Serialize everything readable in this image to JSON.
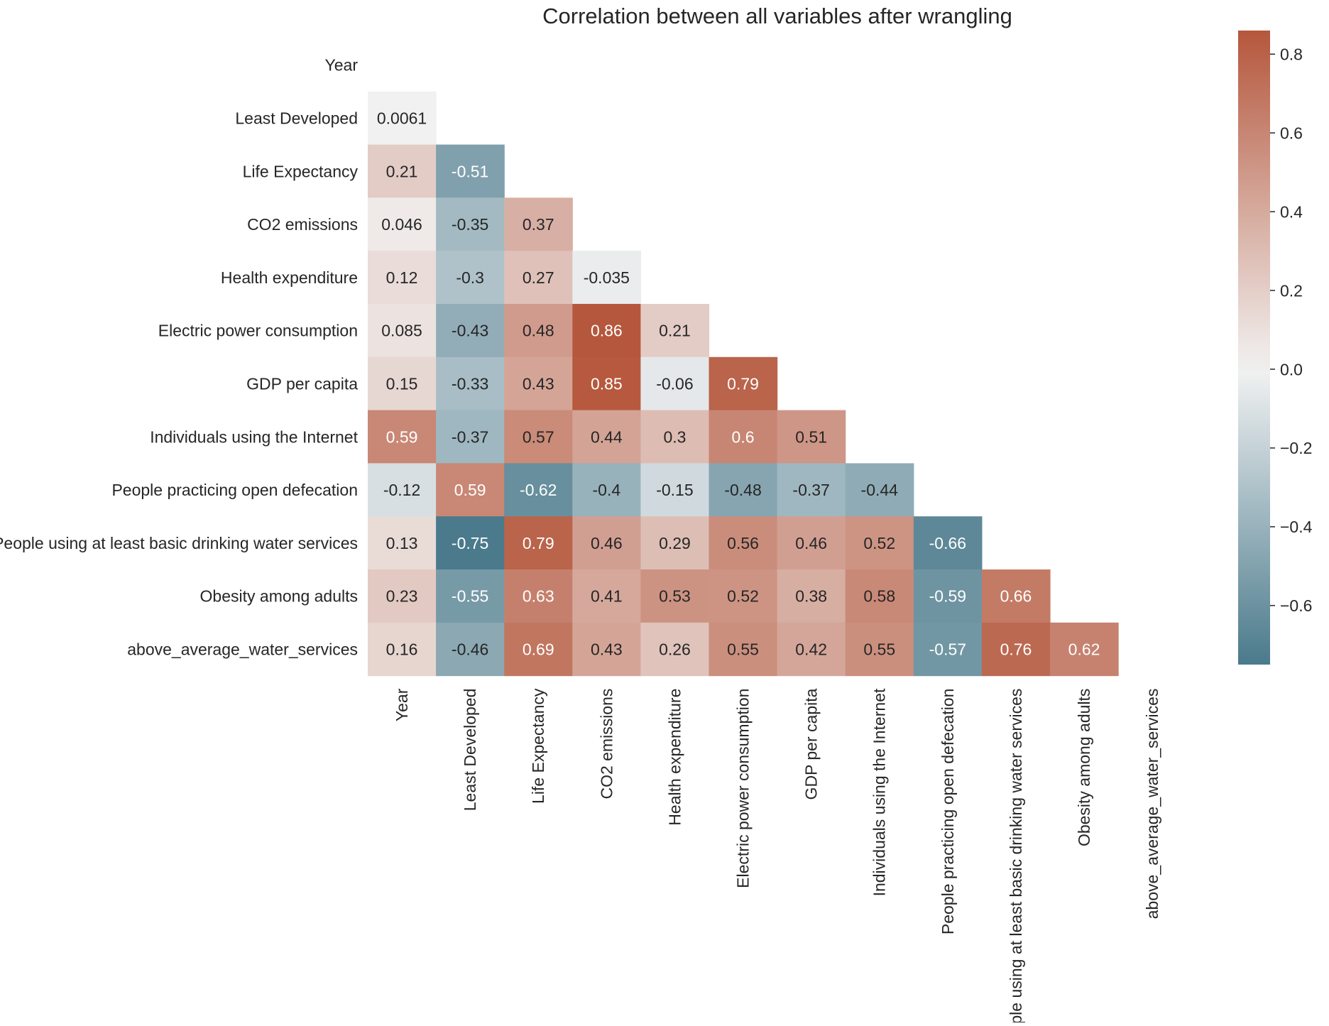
{
  "chart_data": {
    "type": "heatmap",
    "title": "Correlation between all variables after wrangling",
    "variables": [
      "Year",
      "Least Developed",
      "Life Expectancy",
      "CO2 emissions",
      "Health expenditure",
      "Electric power consumption",
      "GDP per capita",
      "Individuals using the Internet",
      "People practicing open defecation",
      "People using at least basic drinking water services",
      "Obesity among adults",
      "above_average_water_services"
    ],
    "mask": "upper triangle and diagonal (lower triangle shown)",
    "cells": [
      [
        "Least Developed",
        "Year",
        "0.0061"
      ],
      [
        "Life Expectancy",
        "Year",
        "0.21"
      ],
      [
        "Life Expectancy",
        "Least Developed",
        "-0.51"
      ],
      [
        "CO2 emissions",
        "Year",
        "0.046"
      ],
      [
        "CO2 emissions",
        "Least Developed",
        "-0.35"
      ],
      [
        "CO2 emissions",
        "Life Expectancy",
        "0.37"
      ],
      [
        "Health expenditure",
        "Year",
        "0.12"
      ],
      [
        "Health expenditure",
        "Least Developed",
        "-0.3"
      ],
      [
        "Health expenditure",
        "Life Expectancy",
        "0.27"
      ],
      [
        "Health expenditure",
        "CO2 emissions",
        "-0.035"
      ],
      [
        "Electric power consumption",
        "Year",
        "0.085"
      ],
      [
        "Electric power consumption",
        "Least Developed",
        "-0.43"
      ],
      [
        "Electric power consumption",
        "Life Expectancy",
        "0.48"
      ],
      [
        "Electric power consumption",
        "CO2 emissions",
        "0.86"
      ],
      [
        "Electric power consumption",
        "Health expenditure",
        "0.21"
      ],
      [
        "GDP per capita",
        "Year",
        "0.15"
      ],
      [
        "GDP per capita",
        "Least Developed",
        "-0.33"
      ],
      [
        "GDP per capita",
        "Life Expectancy",
        "0.43"
      ],
      [
        "GDP per capita",
        "CO2 emissions",
        "0.85"
      ],
      [
        "GDP per capita",
        "Health expenditure",
        "-0.06"
      ],
      [
        "GDP per capita",
        "Electric power consumption",
        "0.79"
      ],
      [
        "Individuals using the Internet",
        "Year",
        "0.59"
      ],
      [
        "Individuals using the Internet",
        "Least Developed",
        "-0.37"
      ],
      [
        "Individuals using the Internet",
        "Life Expectancy",
        "0.57"
      ],
      [
        "Individuals using the Internet",
        "CO2 emissions",
        "0.44"
      ],
      [
        "Individuals using the Internet",
        "Health expenditure",
        "0.3"
      ],
      [
        "Individuals using the Internet",
        "Electric power consumption",
        "0.6"
      ],
      [
        "Individuals using the Internet",
        "GDP per capita",
        "0.51"
      ],
      [
        "People practicing open defecation",
        "Year",
        "-0.12"
      ],
      [
        "People practicing open defecation",
        "Least Developed",
        "0.59"
      ],
      [
        "People practicing open defecation",
        "Life Expectancy",
        "-0.62"
      ],
      [
        "People practicing open defecation",
        "CO2 emissions",
        "-0.4"
      ],
      [
        "People practicing open defecation",
        "Health expenditure",
        "-0.15"
      ],
      [
        "People practicing open defecation",
        "Electric power consumption",
        "-0.48"
      ],
      [
        "People practicing open defecation",
        "GDP per capita",
        "-0.37"
      ],
      [
        "People practicing open defecation",
        "Individuals using the Internet",
        "-0.44"
      ],
      [
        "People using at least basic drinking water services",
        "Year",
        "0.13"
      ],
      [
        "People using at least basic drinking water services",
        "Least Developed",
        "-0.75"
      ],
      [
        "People using at least basic drinking water services",
        "Life Expectancy",
        "0.79"
      ],
      [
        "People using at least basic drinking water services",
        "CO2 emissions",
        "0.46"
      ],
      [
        "People using at least basic drinking water services",
        "Health expenditure",
        "0.29"
      ],
      [
        "People using at least basic drinking water services",
        "Electric power consumption",
        "0.56"
      ],
      [
        "People using at least basic drinking water services",
        "GDP per capita",
        "0.46"
      ],
      [
        "People using at least basic drinking water services",
        "Individuals using the Internet",
        "0.52"
      ],
      [
        "People using at least basic drinking water services",
        "People practicing open defecation",
        "-0.66"
      ],
      [
        "Obesity among adults",
        "Year",
        "0.23"
      ],
      [
        "Obesity among adults",
        "Least Developed",
        "-0.55"
      ],
      [
        "Obesity among adults",
        "Life Expectancy",
        "0.63"
      ],
      [
        "Obesity among adults",
        "CO2 emissions",
        "0.41"
      ],
      [
        "Obesity among adults",
        "Health expenditure",
        "0.53"
      ],
      [
        "Obesity among adults",
        "Electric power consumption",
        "0.52"
      ],
      [
        "Obesity among adults",
        "GDP per capita",
        "0.38"
      ],
      [
        "Obesity among adults",
        "Individuals using the Internet",
        "0.58"
      ],
      [
        "Obesity among adults",
        "People practicing open defecation",
        "-0.59"
      ],
      [
        "Obesity among adults",
        "People using at least basic drinking water services",
        "0.66"
      ],
      [
        "above_average_water_services",
        "Year",
        "0.16"
      ],
      [
        "above_average_water_services",
        "Least Developed",
        "-0.46"
      ],
      [
        "above_average_water_services",
        "Life Expectancy",
        "0.69"
      ],
      [
        "above_average_water_services",
        "CO2 emissions",
        "0.43"
      ],
      [
        "above_average_water_services",
        "Health expenditure",
        "0.26"
      ],
      [
        "above_average_water_services",
        "Electric power consumption",
        "0.55"
      ],
      [
        "above_average_water_services",
        "GDP per capita",
        "0.42"
      ],
      [
        "above_average_water_services",
        "Individuals using the Internet",
        "0.55"
      ],
      [
        "above_average_water_services",
        "People practicing open defecation",
        "-0.57"
      ],
      [
        "above_average_water_services",
        "People using at least basic drinking water services",
        "0.76"
      ],
      [
        "above_average_water_services",
        "Obesity among adults",
        "0.62"
      ]
    ],
    "colorbar": {
      "vmin": -0.75,
      "vmax": 0.86,
      "ticks": [
        -0.6,
        -0.4,
        -0.2,
        0.0,
        0.2,
        0.4,
        0.6,
        0.8
      ],
      "tick_labels": [
        "−0.6",
        "−0.4",
        "−0.2",
        "0.0",
        "0.2",
        "0.4",
        "0.6",
        "0.8"
      ],
      "colormap": "diverging blue-white-red",
      "neg_color": "#4a7a8c",
      "mid_color": "#f2f2f2",
      "pos_color": "#b5573c"
    },
    "grid": false
  }
}
